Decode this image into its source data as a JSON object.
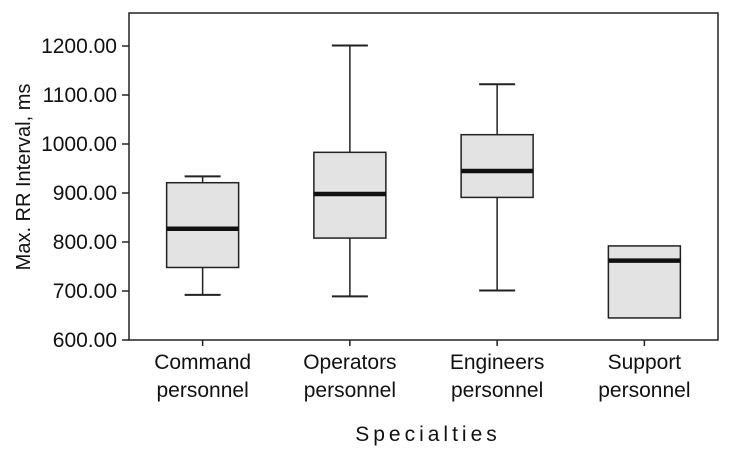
{
  "chart_data": {
    "type": "boxplot",
    "xlabel": "Specialties",
    "ylabel": "Max. RR Interval, ms",
    "ylim": [
      600,
      1250
    ],
    "yticks": [
      "600.00",
      "700.00",
      "800.00",
      "900.00",
      "1000.00",
      "1100.00",
      "1200.00"
    ],
    "grid": false,
    "box_color": "#e3e3e3",
    "categories": [
      {
        "label_lines": [
          "Command",
          "personnel"
        ],
        "min": 692,
        "q1": 748,
        "median": 827,
        "q3": 921,
        "max": 934
      },
      {
        "label_lines": [
          "Operators",
          "personnel"
        ],
        "min": 689,
        "q1": 808,
        "median": 898,
        "q3": 983,
        "max": 1201
      },
      {
        "label_lines": [
          "Engineers",
          "personnel"
        ],
        "min": 701,
        "q1": 891,
        "median": 945,
        "q3": 1019,
        "max": 1122
      },
      {
        "label_lines": [
          "Support",
          "personnel"
        ],
        "min": 645,
        "q1": 645,
        "median": 762,
        "q3": 792,
        "max": 792
      }
    ]
  }
}
